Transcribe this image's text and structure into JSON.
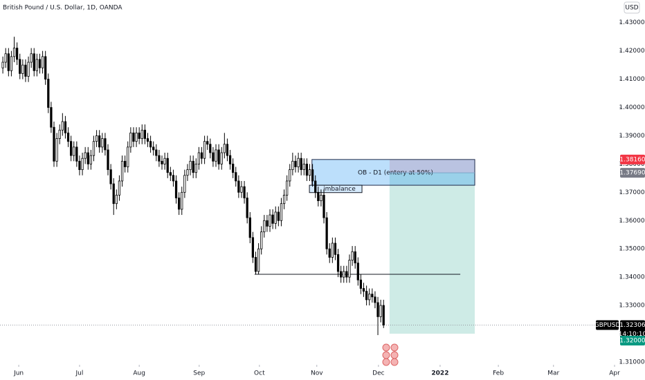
{
  "chart_data": {
    "type": "candlestick",
    "title": "British Pound / U.S. Dollar, 1D, OANDA",
    "currency": "USD",
    "symbol": "GBPUSD",
    "countdown": "14:10:10",
    "up_color": "#ffffff",
    "down_color": "#000000",
    "open": [
      1.414,
      1.416,
      1.419,
      1.413,
      1.418,
      1.421,
      1.417,
      1.412,
      1.415,
      1.411,
      1.416,
      1.419,
      1.413,
      1.417,
      1.414,
      1.418,
      1.41,
      1.4,
      1.393,
      1.381,
      1.389,
      1.392,
      1.395,
      1.391,
      1.388,
      1.383,
      1.386,
      1.381,
      1.378,
      1.382,
      1.384,
      1.38,
      1.383,
      1.388,
      1.39,
      1.386,
      1.389,
      1.385,
      1.378,
      1.373,
      1.366,
      1.369,
      1.374,
      1.381,
      1.379,
      1.386,
      1.391,
      1.388,
      1.391,
      1.389,
      1.392,
      1.389,
      1.388,
      1.386,
      1.385,
      1.383,
      1.381,
      1.38,
      1.382,
      1.377,
      1.376,
      1.374,
      1.368,
      1.364,
      1.37,
      1.376,
      1.378,
      1.381,
      1.377,
      1.38,
      1.384,
      1.382,
      1.388,
      1.387,
      1.384,
      1.381,
      1.385,
      1.38,
      1.384,
      1.387,
      1.383,
      1.38,
      1.377,
      1.374,
      1.37,
      1.372,
      1.368,
      1.361,
      1.354,
      1.347,
      1.342,
      1.35,
      1.356,
      1.36,
      1.358,
      1.362,
      1.359,
      1.363,
      1.36,
      1.366,
      1.369,
      1.374,
      1.378,
      1.381,
      1.379,
      1.382,
      1.378,
      1.38,
      1.376,
      1.378,
      1.374,
      1.37,
      1.367,
      1.369,
      1.361,
      1.35,
      1.347,
      1.352,
      1.348,
      1.342,
      1.34,
      1.342,
      1.34,
      1.346,
      1.349,
      1.345,
      1.339,
      1.336,
      1.335,
      1.332,
      1.334,
      1.333,
      1.331,
      1.326,
      1.33
    ],
    "high": [
      1.418,
      1.421,
      1.421,
      1.42,
      1.425,
      1.423,
      1.419,
      1.417,
      1.417,
      1.418,
      1.421,
      1.421,
      1.419,
      1.419,
      1.42,
      1.42,
      1.412,
      1.402,
      1.395,
      1.391,
      1.394,
      1.398,
      1.397,
      1.393,
      1.39,
      1.388,
      1.388,
      1.383,
      1.384,
      1.386,
      1.386,
      1.385,
      1.39,
      1.392,
      1.392,
      1.391,
      1.391,
      1.387,
      1.38,
      1.375,
      1.371,
      1.376,
      1.383,
      1.383,
      1.388,
      1.393,
      1.393,
      1.393,
      1.393,
      1.394,
      1.394,
      1.391,
      1.39,
      1.388,
      1.387,
      1.385,
      1.383,
      1.384,
      1.384,
      1.379,
      1.378,
      1.376,
      1.37,
      1.372,
      1.378,
      1.38,
      1.383,
      1.383,
      1.382,
      1.386,
      1.386,
      1.39,
      1.39,
      1.389,
      1.386,
      1.387,
      1.387,
      1.386,
      1.391,
      1.389,
      1.385,
      1.382,
      1.379,
      1.376,
      1.374,
      1.374,
      1.37,
      1.363,
      1.356,
      1.349,
      1.352,
      1.358,
      1.362,
      1.362,
      1.364,
      1.364,
      1.365,
      1.365,
      1.368,
      1.371,
      1.376,
      1.38,
      1.384,
      1.383,
      1.384,
      1.384,
      1.382,
      1.382,
      1.38,
      1.38,
      1.376,
      1.372,
      1.371,
      1.371,
      1.363,
      1.352,
      1.354,
      1.354,
      1.35,
      1.344,
      1.344,
      1.344,
      1.348,
      1.351,
      1.351,
      1.347,
      1.341,
      1.338,
      1.337,
      1.336,
      1.336,
      1.335,
      1.333,
      1.332,
      1.332
    ],
    "low": [
      1.412,
      1.414,
      1.411,
      1.411,
      1.416,
      1.415,
      1.41,
      1.41,
      1.409,
      1.409,
      1.414,
      1.411,
      1.411,
      1.412,
      1.412,
      1.408,
      1.398,
      1.391,
      1.379,
      1.379,
      1.387,
      1.39,
      1.389,
      1.386,
      1.381,
      1.381,
      1.379,
      1.376,
      1.376,
      1.38,
      1.378,
      1.378,
      1.381,
      1.386,
      1.384,
      1.384,
      1.383,
      1.376,
      1.371,
      1.362,
      1.364,
      1.367,
      1.372,
      1.377,
      1.377,
      1.384,
      1.386,
      1.386,
      1.387,
      1.387,
      1.387,
      1.386,
      1.384,
      1.383,
      1.381,
      1.379,
      1.378,
      1.378,
      1.375,
      1.374,
      1.372,
      1.366,
      1.362,
      1.362,
      1.368,
      1.374,
      1.376,
      1.375,
      1.375,
      1.378,
      1.38,
      1.38,
      1.385,
      1.382,
      1.379,
      1.379,
      1.378,
      1.378,
      1.382,
      1.381,
      1.378,
      1.375,
      1.372,
      1.368,
      1.368,
      1.366,
      1.359,
      1.352,
      1.345,
      1.341,
      1.341,
      1.348,
      1.354,
      1.356,
      1.356,
      1.357,
      1.357,
      1.358,
      1.358,
      1.364,
      1.367,
      1.372,
      1.376,
      1.377,
      1.377,
      1.376,
      1.376,
      1.374,
      1.374,
      1.372,
      1.368,
      1.365,
      1.365,
      1.359,
      1.348,
      1.345,
      1.345,
      1.346,
      1.34,
      1.338,
      1.338,
      1.338,
      1.338,
      1.344,
      1.343,
      1.337,
      1.334,
      1.333,
      1.33,
      1.33,
      1.331,
      1.329,
      1.3195,
      1.324,
      1.322
    ],
    "close": [
      1.416,
      1.419,
      1.413,
      1.418,
      1.421,
      1.417,
      1.412,
      1.415,
      1.411,
      1.416,
      1.419,
      1.413,
      1.417,
      1.414,
      1.418,
      1.41,
      1.4,
      1.393,
      1.381,
      1.389,
      1.392,
      1.395,
      1.391,
      1.388,
      1.383,
      1.386,
      1.381,
      1.378,
      1.382,
      1.384,
      1.38,
      1.383,
      1.388,
      1.39,
      1.386,
      1.389,
      1.385,
      1.378,
      1.373,
      1.366,
      1.369,
      1.374,
      1.381,
      1.379,
      1.386,
      1.391,
      1.388,
      1.391,
      1.389,
      1.392,
      1.389,
      1.388,
      1.386,
      1.385,
      1.383,
      1.381,
      1.38,
      1.382,
      1.377,
      1.376,
      1.374,
      1.368,
      1.364,
      1.37,
      1.376,
      1.378,
      1.381,
      1.377,
      1.38,
      1.384,
      1.382,
      1.388,
      1.387,
      1.384,
      1.381,
      1.385,
      1.38,
      1.384,
      1.387,
      1.383,
      1.38,
      1.377,
      1.374,
      1.37,
      1.372,
      1.368,
      1.361,
      1.354,
      1.347,
      1.342,
      1.35,
      1.356,
      1.36,
      1.358,
      1.362,
      1.359,
      1.363,
      1.36,
      1.366,
      1.369,
      1.374,
      1.378,
      1.381,
      1.379,
      1.382,
      1.378,
      1.38,
      1.376,
      1.378,
      1.374,
      1.37,
      1.367,
      1.369,
      1.361,
      1.35,
      1.347,
      1.352,
      1.348,
      1.342,
      1.34,
      1.342,
      1.34,
      1.346,
      1.349,
      1.345,
      1.339,
      1.336,
      1.335,
      1.332,
      1.334,
      1.333,
      1.331,
      1.326,
      1.33,
      1.32306
    ],
    "xlim": [
      -1,
      217
    ],
    "ylim": [
      1.309,
      1.438
    ],
    "xticks": [
      {
        "value": 5.6,
        "label": "Jun"
      },
      {
        "value": 27.0,
        "label": "Jul"
      },
      {
        "value": 48.0,
        "label": "Aug"
      },
      {
        "value": 69.1,
        "label": "Sep"
      },
      {
        "value": 90.3,
        "label": "Oct"
      },
      {
        "value": 110.5,
        "label": "Nov"
      },
      {
        "value": 132.2,
        "label": "Dec"
      },
      {
        "value": 153.9,
        "label": "2022"
      },
      {
        "value": 174.4,
        "label": "Feb"
      },
      {
        "value": 193.8,
        "label": "Mar"
      },
      {
        "value": 215.3,
        "label": "Apr"
      }
    ],
    "yticks": [
      {
        "value": 1.31,
        "label": "1.31000"
      },
      {
        "value": 1.32,
        "label": "1.32000"
      },
      {
        "value": 1.33,
        "label": "1.33000"
      },
      {
        "value": 1.34,
        "label": "1.34000"
      },
      {
        "value": 1.35,
        "label": "1.35000"
      },
      {
        "value": 1.36,
        "label": "1.36000"
      },
      {
        "value": 1.37,
        "label": "1.37000"
      },
      {
        "value": 1.38,
        "label": "1.38000"
      },
      {
        "value": 1.39,
        "label": "1.39000"
      },
      {
        "value": 1.4,
        "label": "1.40000"
      },
      {
        "value": 1.41,
        "label": "1.41000"
      },
      {
        "value": 1.42,
        "label": "1.42000"
      },
      {
        "value": 1.43,
        "label": "1.43000"
      }
    ],
    "annotations": {
      "ob_zone": {
        "label": "OB - D1 (entery at 50%)",
        "top": 1.3816,
        "bottom": 1.3725,
        "x": [
          108.8,
          166.1
        ]
      },
      "imbalance": {
        "label": "imbalance",
        "top": 1.3725,
        "bottom": 1.3699,
        "x": [
          107.9,
          126.4
        ]
      },
      "level_line": {
        "value": 1.341,
        "x": [
          88.6,
          161.0
        ]
      },
      "position": {
        "x": [
          136.1,
          166.1
        ],
        "stop": {
          "value": 1.3816,
          "label": "1.38160"
        },
        "entry": {
          "value": 1.3769,
          "label": "1.37690"
        },
        "target": {
          "value": 1.32,
          "label": "1.32000"
        }
      }
    }
  }
}
